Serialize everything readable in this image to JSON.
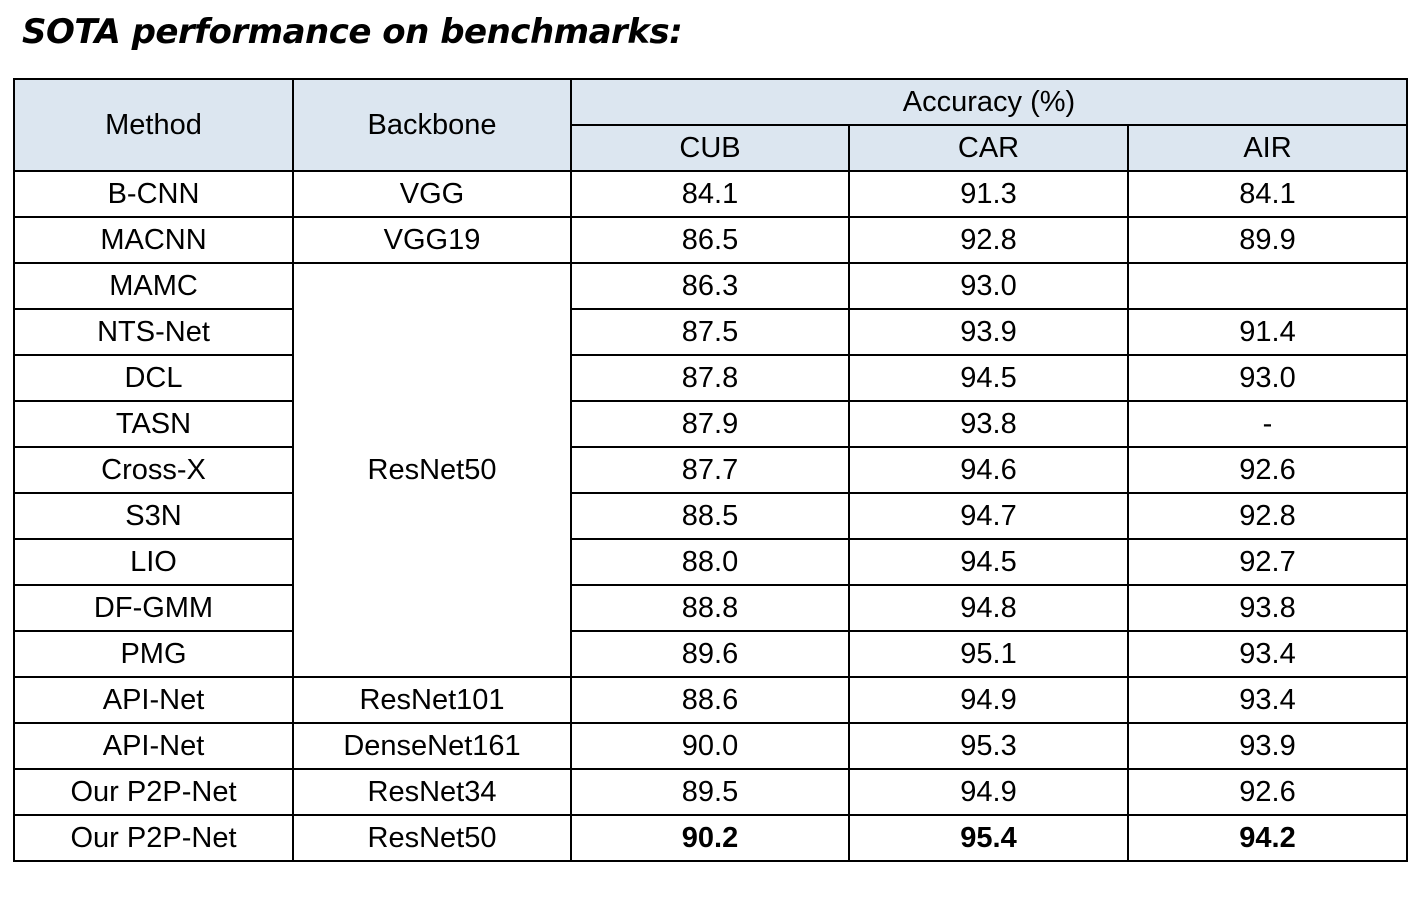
{
  "title": "SOTA performance on benchmarks:",
  "chart_data": {
    "type": "table",
    "headers": {
      "method": "Method",
      "backbone": "Backbone",
      "group": "Accuracy (%)",
      "datasets": [
        "CUB",
        "CAR",
        "AIR"
      ]
    },
    "rows": [
      {
        "method": "B-CNN",
        "backbone": "VGG",
        "values": [
          "84.1",
          "91.3",
          "84.1"
        ]
      },
      {
        "method": "MACNN",
        "backbone": "VGG19",
        "values": [
          "86.5",
          "92.8",
          "89.9"
        ]
      },
      {
        "method": "MAMC",
        "backbone": "ResNet50",
        "values": [
          "86.3",
          "93.0",
          ""
        ]
      },
      {
        "method": "NTS-Net",
        "backbone": "ResNet50",
        "values": [
          "87.5",
          "93.9",
          "91.4"
        ]
      },
      {
        "method": "DCL",
        "backbone": "ResNet50",
        "values": [
          "87.8",
          "94.5",
          "93.0"
        ]
      },
      {
        "method": "TASN",
        "backbone": "ResNet50",
        "values": [
          "87.9",
          "93.8",
          "-"
        ]
      },
      {
        "method": "Cross-X",
        "backbone": "ResNet50",
        "values": [
          "87.7",
          "94.6",
          "92.6"
        ]
      },
      {
        "method": "S3N",
        "backbone": "ResNet50",
        "values": [
          "88.5",
          "94.7",
          "92.8"
        ]
      },
      {
        "method": "LIO",
        "backbone": "ResNet50",
        "values": [
          "88.0",
          "94.5",
          "92.7"
        ]
      },
      {
        "method": "DF-GMM",
        "backbone": "ResNet50",
        "values": [
          "88.8",
          "94.8",
          "93.8"
        ]
      },
      {
        "method": "PMG",
        "backbone": "ResNet50",
        "values": [
          "89.6",
          "95.1",
          "93.4"
        ]
      },
      {
        "method": "API-Net",
        "backbone": "ResNet101",
        "values": [
          "88.6",
          "94.9",
          "93.4"
        ]
      },
      {
        "method": "API-Net",
        "backbone": "DenseNet161",
        "values": [
          "90.0",
          "95.3",
          "93.9"
        ]
      },
      {
        "method": "Our P2P-Net",
        "backbone": "ResNet34",
        "values": [
          "89.5",
          "94.9",
          "92.6"
        ]
      },
      {
        "method": "Our P2P-Net",
        "backbone": "ResNet50",
        "values": [
          "90.2",
          "95.4",
          "94.2"
        ],
        "bold_values": true
      }
    ],
    "merged_backbone": {
      "backbone": "ResNet50",
      "first_row": 2,
      "row_count": 9
    },
    "header_color": "#dce6f0"
  }
}
